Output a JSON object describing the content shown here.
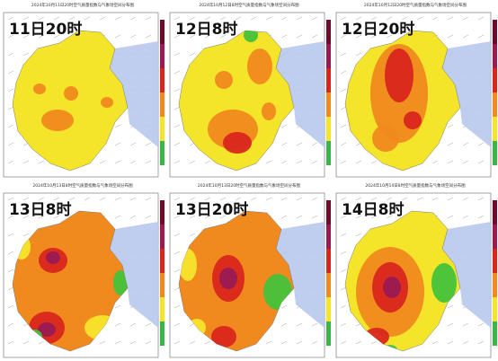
{
  "panels": [
    {
      "subtitle": "2024年10月11日20时空气质量指数与气象场空间分布图",
      "title": "11日20时"
    },
    {
      "subtitle": "2024年10月12日8时空气质量指数与气象场空间分布图",
      "title": "12日8时"
    },
    {
      "subtitle": "2024年10月12日20时空气质量指数与气象场空间分布图",
      "title": "12日20时"
    },
    {
      "subtitle": "2024年10月13日8时空气质量指数与气象场空间分布图",
      "title": "13日8时"
    },
    {
      "subtitle": "2024年10月13日20时空气质量指数与气象场空间分布图",
      "title": "13日20时"
    },
    {
      "subtitle": "2024年10月14日8时空气质量指数与气象场空间分布图",
      "title": "14日8时"
    }
  ]
}
